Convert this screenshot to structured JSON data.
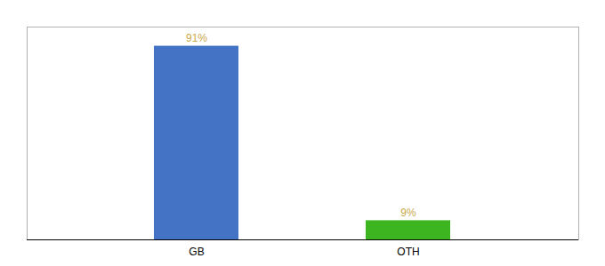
{
  "chart_data": {
    "type": "bar",
    "categories": [
      "GB",
      "OTH"
    ],
    "values": [
      91,
      9
    ],
    "value_labels": [
      "91%",
      "9%"
    ],
    "colors": [
      "#4472c4",
      "#3cb520"
    ],
    "ylim": [
      0,
      100
    ],
    "data_labels": true,
    "tick_labels": "x"
  }
}
